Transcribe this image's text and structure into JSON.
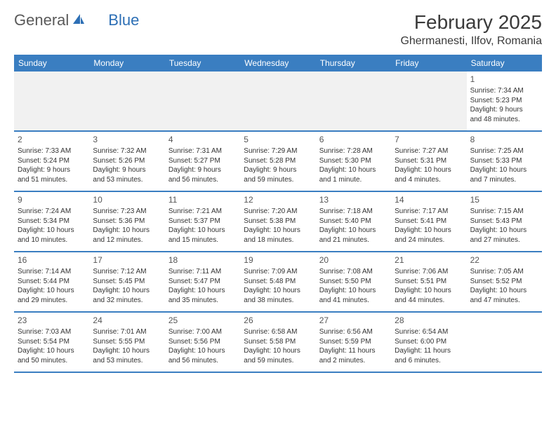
{
  "logo": {
    "text1": "General",
    "text2": "Blue"
  },
  "title": "February 2025",
  "location": "Ghermanesti, Ilfov, Romania",
  "colors": {
    "header_bg": "#3a7ec1",
    "header_text": "#ffffff",
    "border": "#3a7ec1",
    "logo_gray": "#5a5a5a",
    "logo_blue": "#2d6fb5",
    "text": "#333333",
    "empty_bg": "#f1f1f1"
  },
  "weekdays": [
    "Sunday",
    "Monday",
    "Tuesday",
    "Wednesday",
    "Thursday",
    "Friday",
    "Saturday"
  ],
  "weeks": [
    [
      null,
      null,
      null,
      null,
      null,
      null,
      {
        "n": "1",
        "sr": "Sunrise: 7:34 AM",
        "ss": "Sunset: 5:23 PM",
        "d1": "Daylight: 9 hours",
        "d2": "and 48 minutes."
      }
    ],
    [
      {
        "n": "2",
        "sr": "Sunrise: 7:33 AM",
        "ss": "Sunset: 5:24 PM",
        "d1": "Daylight: 9 hours",
        "d2": "and 51 minutes."
      },
      {
        "n": "3",
        "sr": "Sunrise: 7:32 AM",
        "ss": "Sunset: 5:26 PM",
        "d1": "Daylight: 9 hours",
        "d2": "and 53 minutes."
      },
      {
        "n": "4",
        "sr": "Sunrise: 7:31 AM",
        "ss": "Sunset: 5:27 PM",
        "d1": "Daylight: 9 hours",
        "d2": "and 56 minutes."
      },
      {
        "n": "5",
        "sr": "Sunrise: 7:29 AM",
        "ss": "Sunset: 5:28 PM",
        "d1": "Daylight: 9 hours",
        "d2": "and 59 minutes."
      },
      {
        "n": "6",
        "sr": "Sunrise: 7:28 AM",
        "ss": "Sunset: 5:30 PM",
        "d1": "Daylight: 10 hours",
        "d2": "and 1 minute."
      },
      {
        "n": "7",
        "sr": "Sunrise: 7:27 AM",
        "ss": "Sunset: 5:31 PM",
        "d1": "Daylight: 10 hours",
        "d2": "and 4 minutes."
      },
      {
        "n": "8",
        "sr": "Sunrise: 7:25 AM",
        "ss": "Sunset: 5:33 PM",
        "d1": "Daylight: 10 hours",
        "d2": "and 7 minutes."
      }
    ],
    [
      {
        "n": "9",
        "sr": "Sunrise: 7:24 AM",
        "ss": "Sunset: 5:34 PM",
        "d1": "Daylight: 10 hours",
        "d2": "and 10 minutes."
      },
      {
        "n": "10",
        "sr": "Sunrise: 7:23 AM",
        "ss": "Sunset: 5:36 PM",
        "d1": "Daylight: 10 hours",
        "d2": "and 12 minutes."
      },
      {
        "n": "11",
        "sr": "Sunrise: 7:21 AM",
        "ss": "Sunset: 5:37 PM",
        "d1": "Daylight: 10 hours",
        "d2": "and 15 minutes."
      },
      {
        "n": "12",
        "sr": "Sunrise: 7:20 AM",
        "ss": "Sunset: 5:38 PM",
        "d1": "Daylight: 10 hours",
        "d2": "and 18 minutes."
      },
      {
        "n": "13",
        "sr": "Sunrise: 7:18 AM",
        "ss": "Sunset: 5:40 PM",
        "d1": "Daylight: 10 hours",
        "d2": "and 21 minutes."
      },
      {
        "n": "14",
        "sr": "Sunrise: 7:17 AM",
        "ss": "Sunset: 5:41 PM",
        "d1": "Daylight: 10 hours",
        "d2": "and 24 minutes."
      },
      {
        "n": "15",
        "sr": "Sunrise: 7:15 AM",
        "ss": "Sunset: 5:43 PM",
        "d1": "Daylight: 10 hours",
        "d2": "and 27 minutes."
      }
    ],
    [
      {
        "n": "16",
        "sr": "Sunrise: 7:14 AM",
        "ss": "Sunset: 5:44 PM",
        "d1": "Daylight: 10 hours",
        "d2": "and 29 minutes."
      },
      {
        "n": "17",
        "sr": "Sunrise: 7:12 AM",
        "ss": "Sunset: 5:45 PM",
        "d1": "Daylight: 10 hours",
        "d2": "and 32 minutes."
      },
      {
        "n": "18",
        "sr": "Sunrise: 7:11 AM",
        "ss": "Sunset: 5:47 PM",
        "d1": "Daylight: 10 hours",
        "d2": "and 35 minutes."
      },
      {
        "n": "19",
        "sr": "Sunrise: 7:09 AM",
        "ss": "Sunset: 5:48 PM",
        "d1": "Daylight: 10 hours",
        "d2": "and 38 minutes."
      },
      {
        "n": "20",
        "sr": "Sunrise: 7:08 AM",
        "ss": "Sunset: 5:50 PM",
        "d1": "Daylight: 10 hours",
        "d2": "and 41 minutes."
      },
      {
        "n": "21",
        "sr": "Sunrise: 7:06 AM",
        "ss": "Sunset: 5:51 PM",
        "d1": "Daylight: 10 hours",
        "d2": "and 44 minutes."
      },
      {
        "n": "22",
        "sr": "Sunrise: 7:05 AM",
        "ss": "Sunset: 5:52 PM",
        "d1": "Daylight: 10 hours",
        "d2": "and 47 minutes."
      }
    ],
    [
      {
        "n": "23",
        "sr": "Sunrise: 7:03 AM",
        "ss": "Sunset: 5:54 PM",
        "d1": "Daylight: 10 hours",
        "d2": "and 50 minutes."
      },
      {
        "n": "24",
        "sr": "Sunrise: 7:01 AM",
        "ss": "Sunset: 5:55 PM",
        "d1": "Daylight: 10 hours",
        "d2": "and 53 minutes."
      },
      {
        "n": "25",
        "sr": "Sunrise: 7:00 AM",
        "ss": "Sunset: 5:56 PM",
        "d1": "Daylight: 10 hours",
        "d2": "and 56 minutes."
      },
      {
        "n": "26",
        "sr": "Sunrise: 6:58 AM",
        "ss": "Sunset: 5:58 PM",
        "d1": "Daylight: 10 hours",
        "d2": "and 59 minutes."
      },
      {
        "n": "27",
        "sr": "Sunrise: 6:56 AM",
        "ss": "Sunset: 5:59 PM",
        "d1": "Daylight: 11 hours",
        "d2": "and 2 minutes."
      },
      {
        "n": "28",
        "sr": "Sunrise: 6:54 AM",
        "ss": "Sunset: 6:00 PM",
        "d1": "Daylight: 11 hours",
        "d2": "and 6 minutes."
      },
      null
    ]
  ]
}
